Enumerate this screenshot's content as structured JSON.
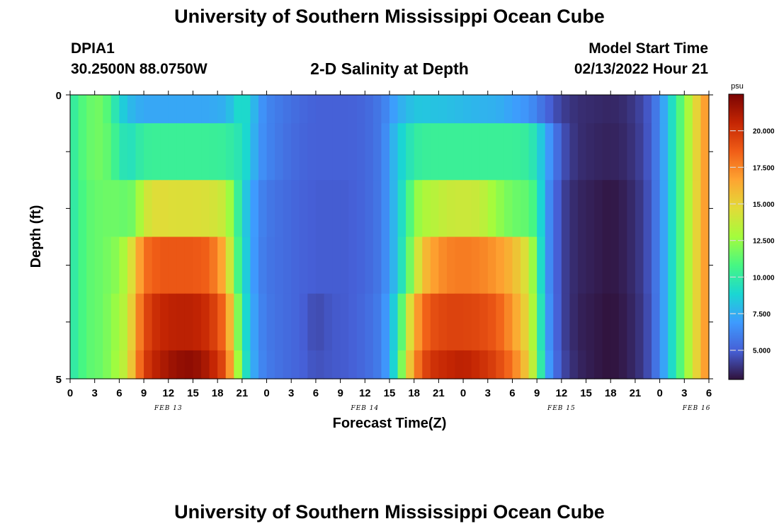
{
  "header": {
    "main_title": "University of Southern Mississippi Ocean Cube",
    "station_id": "DPIA1",
    "station_coords": "30.2500N  88.0750W",
    "chart_title": "2-D Salinity at Depth",
    "model_start_label": "Model Start Time",
    "model_start_value": "02/13/2022 Hour 21"
  },
  "footer": {
    "title": "University of Southern Mississippi Ocean Cube"
  },
  "chart_data": {
    "type": "heatmap",
    "title": "2-D Salinity at Depth",
    "xlabel": "Forecast Time(Z)",
    "ylabel": "Depth (ft)",
    "ylim": [
      0,
      5
    ],
    "y_ticks": [
      "0",
      "5"
    ],
    "x_ticks": [
      "0",
      "3",
      "6",
      "9",
      "12",
      "15",
      "18",
      "21",
      "0",
      "3",
      "6",
      "9",
      "12",
      "15",
      "18",
      "21",
      "0",
      "3",
      "6",
      "9",
      "12",
      "15",
      "18",
      "21",
      "0",
      "3",
      "6"
    ],
    "date_labels": [
      "FEB 13",
      "FEB 14",
      "FEB 15",
      "FEB 16"
    ],
    "colorbar": {
      "unit": "psu",
      "vmin": 3.0,
      "vmax": 22.5,
      "tick_values": [
        5.0,
        7.5,
        10.0,
        12.5,
        15.0,
        17.5,
        20.0
      ],
      "tick_labels": [
        "5.000",
        "7.500",
        "10.000",
        "12.500",
        "15.000",
        "17.500",
        "20.000"
      ]
    },
    "time_hours_start": 0,
    "time_hours_end": 78,
    "time_step_hours": 1,
    "depth_layers_ft": [
      "0.0-0.5",
      "0.5-1.5",
      "1.5-2.5",
      "2.5-3.5",
      "3.5-4.5",
      "4.5-5.0"
    ],
    "keypoints": {
      "hours": [
        0,
        2,
        4,
        6,
        7,
        8,
        9,
        10,
        11,
        13,
        15,
        17,
        19,
        20,
        21,
        22,
        23,
        24,
        26,
        28,
        30,
        32,
        34,
        36,
        38,
        39,
        40,
        41,
        42,
        43,
        44,
        46,
        48,
        50,
        52,
        54,
        56,
        57,
        58,
        59,
        60,
        61,
        62,
        64,
        66,
        68,
        70,
        71,
        72,
        73,
        74,
        75,
        76,
        77,
        78
      ],
      "layers": [
        [
          9.8,
          11.4,
          11.8,
          9.0,
          8.0,
          7.6,
          7.3,
          7.3,
          7.3,
          7.3,
          7.3,
          7.3,
          7.6,
          8.5,
          9.5,
          8.5,
          7.0,
          6.2,
          5.7,
          5.3,
          5.0,
          5.0,
          5.0,
          5.2,
          5.8,
          6.6,
          7.4,
          7.8,
          8.3,
          8.3,
          8.2,
          8.1,
          7.9,
          7.7,
          7.6,
          7.1,
          6.6,
          6.0,
          5.3,
          4.7,
          4.2,
          3.9,
          3.7,
          3.6,
          3.5,
          3.7,
          4.4,
          5.1,
          6.4,
          8.2,
          10.2,
          12.0,
          14.0,
          16.0,
          17.5
        ],
        [
          9.8,
          11.4,
          11.8,
          10.0,
          9.2,
          9.7,
          10.2,
          10.3,
          10.3,
          10.3,
          10.3,
          10.3,
          10.2,
          9.8,
          9.5,
          8.3,
          6.8,
          6.2,
          5.6,
          5.2,
          5.0,
          5.0,
          5.0,
          5.2,
          5.8,
          7.0,
          8.4,
          9.2,
          10.0,
          10.2,
          10.3,
          10.3,
          10.3,
          10.3,
          10.3,
          10.3,
          10.1,
          9.2,
          7.5,
          6.0,
          4.8,
          4.1,
          3.7,
          3.5,
          3.4,
          3.6,
          4.3,
          5.1,
          6.4,
          8.2,
          10.2,
          12.0,
          14.0,
          16.0,
          17.5
        ],
        [
          9.6,
          11.2,
          11.6,
          11.6,
          11.4,
          12.0,
          13.8,
          14.5,
          14.7,
          14.5,
          14.5,
          14.4,
          13.7,
          11.5,
          9.0,
          7.5,
          6.3,
          5.8,
          5.4,
          5.1,
          4.9,
          4.9,
          4.9,
          5.2,
          5.8,
          7.0,
          8.4,
          10.0,
          12.0,
          13.0,
          13.2,
          13.8,
          14.0,
          13.8,
          12.5,
          11.6,
          11.3,
          10.3,
          7.2,
          5.5,
          4.4,
          3.8,
          3.5,
          3.3,
          3.1,
          3.4,
          4.1,
          5.0,
          6.3,
          8.1,
          10.1,
          12.0,
          14.0,
          16.0,
          17.5
        ],
        [
          9.6,
          11.2,
          11.6,
          12.3,
          13.6,
          15.5,
          18.0,
          18.5,
          18.8,
          18.8,
          18.8,
          18.5,
          16.0,
          12.0,
          9.5,
          7.5,
          6.2,
          5.7,
          5.4,
          5.1,
          4.9,
          4.9,
          4.9,
          5.2,
          5.8,
          7.0,
          8.4,
          10.5,
          13.0,
          15.5,
          16.5,
          17.6,
          17.8,
          17.6,
          17.0,
          16.0,
          14.0,
          11.0,
          7.2,
          5.5,
          4.4,
          3.8,
          3.5,
          3.3,
          3.1,
          3.4,
          4.1,
          5.0,
          6.3,
          8.1,
          10.1,
          12.0,
          14.0,
          16.0,
          17.5
        ],
        [
          9.6,
          11.2,
          11.6,
          12.8,
          13.8,
          16.5,
          19.0,
          20.0,
          20.5,
          20.8,
          20.8,
          20.2,
          18.0,
          14.0,
          10.0,
          7.8,
          6.4,
          5.8,
          5.4,
          5.1,
          4.4,
          4.8,
          4.9,
          5.3,
          6.0,
          7.5,
          9.5,
          13.0,
          16.0,
          18.0,
          19.0,
          19.5,
          19.5,
          19.3,
          18.8,
          17.0,
          14.5,
          11.5,
          7.5,
          5.6,
          4.4,
          3.8,
          3.4,
          3.2,
          3.0,
          3.3,
          4.0,
          4.9,
          6.3,
          8.1,
          10.1,
          12.0,
          14.0,
          16.0,
          17.5
        ],
        [
          9.6,
          11.2,
          11.6,
          13.0,
          14.0,
          17.0,
          19.5,
          20.5,
          21.0,
          21.8,
          22.0,
          21.0,
          19.0,
          15.0,
          10.5,
          8.0,
          6.5,
          5.9,
          5.4,
          5.1,
          4.6,
          4.8,
          4.9,
          5.3,
          6.0,
          7.5,
          10.0,
          14.0,
          17.0,
          19.0,
          20.0,
          20.5,
          20.8,
          20.3,
          19.5,
          18.0,
          15.0,
          12.0,
          7.8,
          5.8,
          4.6,
          3.9,
          3.5,
          3.2,
          3.0,
          3.3,
          4.0,
          4.9,
          6.3,
          8.1,
          10.1,
          12.0,
          14.0,
          16.0,
          17.5
        ]
      ]
    }
  }
}
